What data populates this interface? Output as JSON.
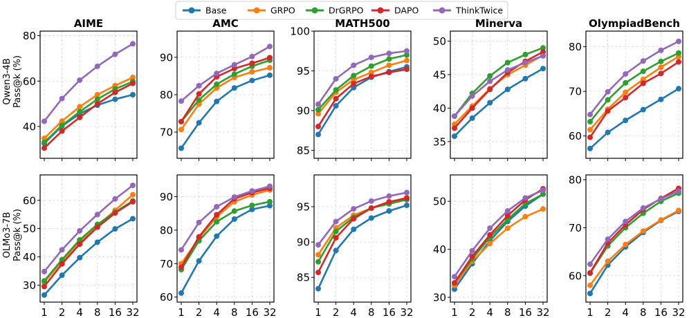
{
  "legend": {
    "items": [
      {
        "name": "Base",
        "color": "#1f77b4"
      },
      {
        "name": "GRPO",
        "color": "#ff7f0e"
      },
      {
        "name": "DrGRPO",
        "color": "#2ca02c"
      },
      {
        "name": "DAPO",
        "color": "#d62728"
      },
      {
        "name": "ThinkTwice",
        "color": "#9467bd"
      }
    ]
  },
  "row_labels": [
    {
      "model": "Qwen3-4B",
      "metric": "Pass@k (%)"
    },
    {
      "model": "OLMo3-7B",
      "metric": "Pass@k (%)"
    }
  ],
  "chart_data": [
    {
      "type": "line",
      "title": "AIME",
      "row": 0,
      "col": 0,
      "x": [
        "1",
        "2",
        "4",
        "8",
        "16",
        "32"
      ],
      "ylim": [
        26,
        82
      ],
      "yticks": [
        40,
        60,
        80
      ],
      "grid": true,
      "series": [
        {
          "name": "Base",
          "values": [
            32.6,
            40.2,
            45.6,
            49.4,
            52.0,
            54.0
          ]
        },
        {
          "name": "GRPO",
          "values": [
            34.8,
            42.4,
            48.7,
            54.0,
            58.0,
            61.6
          ]
        },
        {
          "name": "DrGRPO",
          "values": [
            33.0,
            40.5,
            46.5,
            52.0,
            56.5,
            59.8
          ]
        },
        {
          "name": "DAPO",
          "values": [
            30.5,
            38.0,
            44.0,
            50.0,
            55.0,
            59.0
          ]
        },
        {
          "name": "ThinkTwice",
          "values": [
            42.3,
            52.3,
            60.4,
            66.5,
            71.8,
            76.4
          ]
        }
      ]
    },
    {
      "type": "line",
      "title": "AMC",
      "row": 0,
      "col": 1,
      "x": [
        "1",
        "2",
        "4",
        "8",
        "16",
        "32"
      ],
      "ylim": [
        63,
        97
      ],
      "yticks": [
        70,
        80,
        90
      ],
      "grid": true,
      "series": [
        {
          "name": "Base",
          "values": [
            65.7,
            72.5,
            78.2,
            81.8,
            83.8,
            85.2
          ]
        },
        {
          "name": "GRPO",
          "values": [
            70.7,
            77.5,
            81.8,
            84.6,
            86.1,
            87.2
          ]
        },
        {
          "name": "DrGRPO",
          "values": [
            72.8,
            78.6,
            82.8,
            85.5,
            87.6,
            89.2
          ]
        },
        {
          "name": "DAPO",
          "values": [
            72.8,
            80.2,
            84.8,
            87.0,
            88.4,
            89.9
          ]
        },
        {
          "name": "ThinkTwice",
          "values": [
            78.3,
            82.4,
            85.7,
            88.0,
            90.2,
            92.9
          ]
        }
      ]
    },
    {
      "type": "line",
      "title": "MATH500",
      "row": 0,
      "col": 2,
      "x": [
        "1",
        "2",
        "4",
        "8",
        "16",
        "32"
      ],
      "ylim": [
        84,
        100
      ],
      "yticks": [
        85,
        90,
        95,
        100
      ],
      "grid": true,
      "series": [
        {
          "name": "Base",
          "values": [
            87.0,
            90.6,
            92.9,
            94.2,
            94.9,
            95.5
          ]
        },
        {
          "name": "GRPO",
          "values": [
            89.6,
            92.3,
            93.9,
            94.8,
            95.7,
            96.3
          ]
        },
        {
          "name": "DrGRPO",
          "values": [
            90.1,
            92.6,
            94.4,
            95.6,
            96.5,
            97.0
          ]
        },
        {
          "name": "DAPO",
          "values": [
            88.0,
            91.5,
            93.4,
            94.3,
            94.8,
            95.2
          ]
        },
        {
          "name": "ThinkTwice",
          "values": [
            90.8,
            94.0,
            95.7,
            96.7,
            97.2,
            97.5
          ]
        }
      ]
    },
    {
      "type": "line",
      "title": "Minerva",
      "row": 0,
      "col": 3,
      "x": [
        "1",
        "2",
        "4",
        "8",
        "16",
        "32"
      ],
      "ylim": [
        32.5,
        51.5
      ],
      "yticks": [
        35,
        40,
        45,
        50
      ],
      "grid": true,
      "series": [
        {
          "name": "Base",
          "values": [
            35.8,
            38.5,
            40.8,
            42.8,
            44.4,
            45.9
          ]
        },
        {
          "name": "GRPO",
          "values": [
            37.6,
            40.3,
            42.9,
            45.0,
            46.4,
            47.9
          ]
        },
        {
          "name": "DrGRPO",
          "values": [
            38.8,
            42.2,
            44.8,
            46.8,
            48.0,
            49.0
          ]
        },
        {
          "name": "DAPO",
          "values": [
            37.0,
            40.0,
            42.8,
            45.3,
            47.0,
            48.4
          ]
        },
        {
          "name": "ThinkTwice",
          "values": [
            38.8,
            41.8,
            44.0,
            45.7,
            46.8,
            47.8
          ]
        }
      ]
    },
    {
      "type": "line",
      "title": "OlympiadBench",
      "row": 0,
      "col": 4,
      "x": [
        "1",
        "2",
        "4",
        "8",
        "16",
        "32"
      ],
      "ylim": [
        55,
        83.5
      ],
      "yticks": [
        60,
        70,
        80
      ],
      "grid": true,
      "series": [
        {
          "name": "Base",
          "values": [
            57.2,
            60.8,
            63.5,
            65.9,
            68.2,
            70.6
          ]
        },
        {
          "name": "GRPO",
          "values": [
            61.4,
            66.0,
            69.8,
            72.7,
            75.4,
            77.8
          ]
        },
        {
          "name": "DrGRPO",
          "values": [
            63.2,
            68.1,
            71.9,
            74.5,
            76.7,
            78.6
          ]
        },
        {
          "name": "DAPO",
          "values": [
            59.7,
            65.6,
            68.6,
            71.8,
            74.0,
            76.6
          ]
        },
        {
          "name": "ThinkTwice",
          "values": [
            64.8,
            69.9,
            73.9,
            76.8,
            79.2,
            81.2
          ]
        }
      ]
    },
    {
      "type": "line",
      "title": "",
      "row": 1,
      "col": 0,
      "x": [
        "1",
        "2",
        "4",
        "8",
        "16",
        "32"
      ],
      "ylim": [
        24,
        69
      ],
      "yticks": [
        30,
        40,
        50,
        60
      ],
      "grid": true,
      "series": [
        {
          "name": "Base",
          "values": [
            26.5,
            33.5,
            39.7,
            45.2,
            49.9,
            53.5
          ]
        },
        {
          "name": "GRPO",
          "values": [
            31.0,
            38.5,
            45.5,
            51.0,
            56.5,
            62.0
          ]
        },
        {
          "name": "DrGRPO",
          "values": [
            31.5,
            39.0,
            46.0,
            51.5,
            55.8,
            59.8
          ]
        },
        {
          "name": "DAPO",
          "values": [
            29.5,
            37.5,
            44.5,
            50.5,
            55.5,
            59.5
          ]
        },
        {
          "name": "ThinkTwice",
          "values": [
            34.8,
            42.5,
            49.2,
            55.0,
            60.5,
            65.3
          ]
        }
      ]
    },
    {
      "type": "line",
      "title": "",
      "row": 1,
      "col": 1,
      "x": [
        "1",
        "2",
        "4",
        "8",
        "16",
        "32"
      ],
      "ylim": [
        58.5,
        96.5
      ],
      "yticks": [
        60,
        70,
        80,
        90
      ],
      "grid": true,
      "series": [
        {
          "name": "Base",
          "values": [
            61.2,
            70.8,
            78.2,
            83.3,
            86.2,
            87.3
          ]
        },
        {
          "name": "GRPO",
          "values": [
            70.0,
            77.5,
            84.0,
            88.5,
            90.5,
            92.0
          ]
        },
        {
          "name": "DrGRPO",
          "values": [
            68.2,
            76.8,
            82.5,
            85.7,
            87.4,
            88.5
          ]
        },
        {
          "name": "DAPO",
          "values": [
            68.9,
            78.0,
            84.6,
            89.4,
            91.2,
            92.5
          ]
        },
        {
          "name": "ThinkTwice",
          "values": [
            74.1,
            82.3,
            87.0,
            89.9,
            91.7,
            93.1
          ]
        }
      ]
    },
    {
      "type": "line",
      "title": "",
      "row": 1,
      "col": 2,
      "x": [
        "1",
        "2",
        "4",
        "8",
        "16",
        "32"
      ],
      "ylim": [
        81.5,
        99.5
      ],
      "yticks": [
        85,
        90,
        95
      ],
      "grid": true,
      "series": [
        {
          "name": "Base",
          "values": [
            83.4,
            88.8,
            91.8,
            93.4,
            94.4,
            95.2
          ]
        },
        {
          "name": "GRPO",
          "values": [
            88.2,
            92.0,
            93.8,
            94.8,
            95.6,
            96.3
          ]
        },
        {
          "name": "DrGRPO",
          "values": [
            87.2,
            91.5,
            93.5,
            94.8,
            95.4,
            96.0
          ]
        },
        {
          "name": "DAPO",
          "values": [
            85.7,
            90.6,
            93.3,
            94.8,
            95.7,
            96.2
          ]
        },
        {
          "name": "ThinkTwice",
          "values": [
            89.6,
            92.9,
            94.7,
            95.8,
            96.5,
            97.0
          ]
        }
      ]
    },
    {
      "type": "line",
      "title": "",
      "row": 1,
      "col": 3,
      "x": [
        "1",
        "2",
        "4",
        "8",
        "16",
        "32"
      ],
      "ylim": [
        29,
        55.5
      ],
      "yticks": [
        30,
        40,
        50
      ],
      "grid": true,
      "series": [
        {
          "name": "Base",
          "values": [
            31.7,
            37.0,
            41.8,
            45.8,
            49.0,
            51.5
          ]
        },
        {
          "name": "GRPO",
          "values": [
            32.5,
            37.5,
            41.2,
            44.4,
            46.8,
            48.4
          ]
        },
        {
          "name": "DrGRPO",
          "values": [
            33.0,
            38.0,
            42.5,
            46.2,
            49.5,
            51.5
          ]
        },
        {
          "name": "DAPO",
          "values": [
            33.0,
            38.5,
            43.0,
            47.0,
            50.3,
            52.6
          ]
        },
        {
          "name": "ThinkTwice",
          "values": [
            34.3,
            39.7,
            44.4,
            48.0,
            50.7,
            52.3
          ]
        }
      ]
    },
    {
      "type": "line",
      "title": "",
      "row": 1,
      "col": 4,
      "x": [
        "1",
        "2",
        "4",
        "8",
        "16",
        "32"
      ],
      "ylim": [
        54.5,
        81
      ],
      "yticks": [
        60,
        70,
        80
      ],
      "grid": true,
      "series": [
        {
          "name": "Base",
          "values": [
            56.3,
            62.2,
            66.0,
            69.0,
            71.5,
            73.4
          ]
        },
        {
          "name": "GRPO",
          "values": [
            58.0,
            63.0,
            66.5,
            69.3,
            71.6,
            73.6
          ]
        },
        {
          "name": "DrGRPO",
          "values": [
            60.5,
            66.2,
            70.0,
            73.0,
            75.5,
            77.2
          ]
        },
        {
          "name": "DAPO",
          "values": [
            60.6,
            66.8,
            70.6,
            73.8,
            76.1,
            78.2
          ]
        },
        {
          "name": "ThinkTwice",
          "values": [
            62.4,
            67.6,
            71.3,
            74.1,
            76.0,
            77.6
          ]
        }
      ]
    }
  ]
}
